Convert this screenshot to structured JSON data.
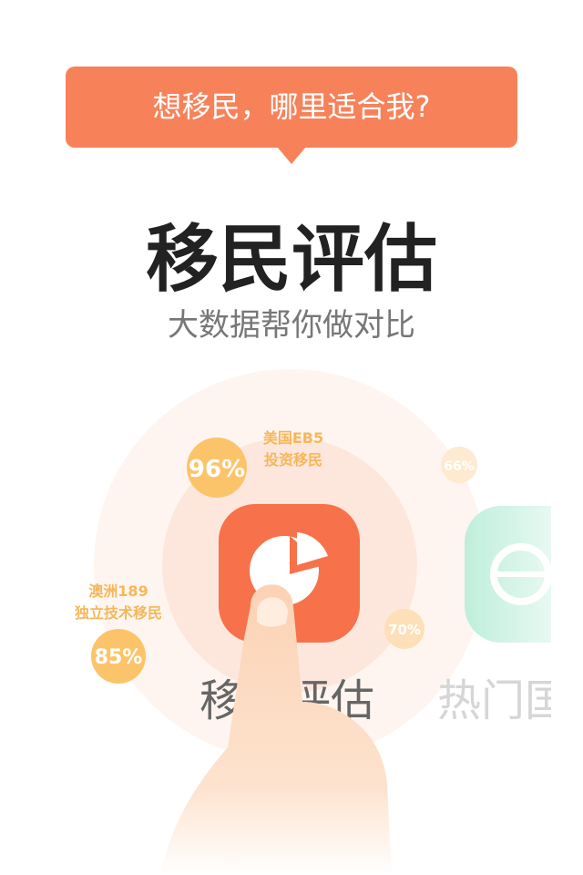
{
  "banner": "想移民，哪里适合我?",
  "title": "移民评估",
  "subtitle": "大数据帮你做对比",
  "bubbles": [
    {
      "value": "96%",
      "label": [
        "美国EB5",
        "投资移民"
      ]
    },
    {
      "value": "85%",
      "label": [
        "澳洲189",
        "独立技术移民"
      ]
    },
    {
      "value": "66%"
    },
    {
      "value": "70%"
    }
  ],
  "apps": [
    "移民评估",
    "热门国"
  ]
}
